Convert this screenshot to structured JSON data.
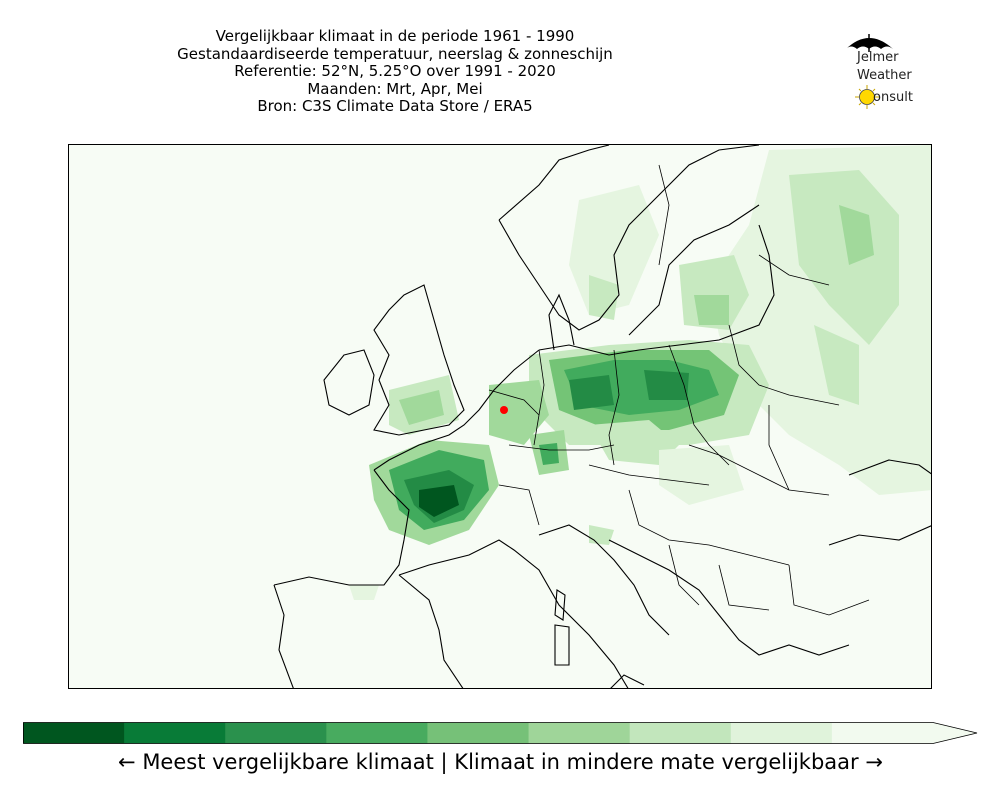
{
  "title": {
    "lines": [
      "Vergelijkbaar klimaat in de periode 1961 - 1990",
      "Gestandaardiseerde temperatuur, neerslag & zonneschijn",
      "Referentie: 52°N, 5.25°O over 1991 - 2020",
      "Maanden: Mrt, Apr, Mei",
      "Bron: C3S Climate Data Store / ERA5"
    ]
  },
  "logo": {
    "line1": "Jelmer",
    "line2": "Weather",
    "line3": "onsult",
    "icons": [
      "umbrella-icon",
      "sun-icon"
    ],
    "umbrella_color": "#000000",
    "sun_color": "#ffd800"
  },
  "map": {
    "projection": "lat-lon",
    "region": "Europe",
    "reference_marker_color": "#ff0000",
    "background_color": "#f7fcf5",
    "coastline_color": "#000000"
  },
  "colorbar": {
    "colors": [
      "#00561f",
      "#087b37",
      "#2a914d",
      "#48ab5f",
      "#76c178",
      "#9fd599",
      "#c2e6bc",
      "#e0f3db",
      "#f2faef"
    ],
    "extend": "max",
    "caption": "← Meest vergelijkbare klimaat  |  Klimaat in mindere mate vergelijkbaar →"
  }
}
